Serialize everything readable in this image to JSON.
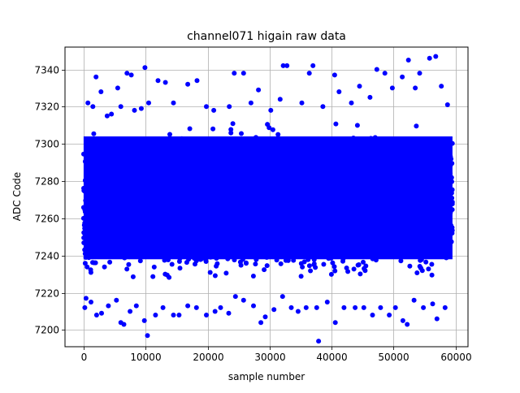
{
  "chart_data": {
    "type": "scatter",
    "title": "channel071 higain raw data",
    "xlabel": "sample number",
    "ylabel": "ADC Code",
    "xlim": [
      -3000,
      62000
    ],
    "ylim": [
      7191,
      7352
    ],
    "xticks": [
      0,
      10000,
      20000,
      30000,
      40000,
      50000,
      60000
    ],
    "yticks": [
      7200,
      7220,
      7240,
      7260,
      7280,
      7300,
      7320,
      7340
    ],
    "xtick_labels": [
      "0",
      "10000",
      "20000",
      "30000",
      "40000",
      "50000",
      "60000"
    ],
    "ytick_labels": [
      "7200",
      "7220",
      "7240",
      "7260",
      "7280",
      "7300",
      "7320",
      "7340"
    ],
    "grid": true,
    "marker_color": "#0000ff",
    "n_samples": 59500,
    "core_band": {
      "y_min": 7228,
      "y_max": 7312,
      "mean": 7268
    },
    "series": [
      {
        "values_points": [
          [
            700,
            7322
          ],
          [
            1500,
            7320
          ],
          [
            2000,
            7336
          ],
          [
            2800,
            7328
          ],
          [
            3800,
            7315
          ],
          [
            4500,
            7316
          ],
          [
            5500,
            7330
          ],
          [
            6000,
            7320
          ],
          [
            7000,
            7338
          ],
          [
            7700,
            7337
          ],
          [
            8200,
            7318
          ],
          [
            9300,
            7319
          ],
          [
            9900,
            7341
          ],
          [
            10500,
            7322
          ],
          [
            12000,
            7334
          ],
          [
            13200,
            7333
          ],
          [
            14500,
            7322
          ],
          [
            16800,
            7332
          ],
          [
            18300,
            7334
          ],
          [
            19800,
            7320
          ],
          [
            21000,
            7318
          ],
          [
            23500,
            7320
          ],
          [
            24300,
            7338
          ],
          [
            25800,
            7338
          ],
          [
            27000,
            7322
          ],
          [
            28200,
            7329
          ],
          [
            30200,
            7318
          ],
          [
            31700,
            7324
          ],
          [
            32200,
            7342
          ],
          [
            32800,
            7342
          ],
          [
            35200,
            7322
          ],
          [
            36400,
            7338
          ],
          [
            37000,
            7342
          ],
          [
            38600,
            7320
          ],
          [
            40500,
            7337
          ],
          [
            41200,
            7328
          ],
          [
            43200,
            7322
          ],
          [
            44500,
            7331
          ],
          [
            46200,
            7325
          ],
          [
            47300,
            7340
          ],
          [
            48600,
            7338
          ],
          [
            49800,
            7330
          ],
          [
            51400,
            7336
          ],
          [
            52400,
            7345
          ],
          [
            53500,
            7330
          ],
          [
            54200,
            7338
          ],
          [
            55800,
            7346
          ],
          [
            56800,
            7347
          ],
          [
            57700,
            7331
          ],
          [
            58700,
            7321
          ],
          [
            200,
            7212
          ],
          [
            400,
            7217
          ],
          [
            1200,
            7215
          ],
          [
            2100,
            7208
          ],
          [
            2900,
            7209
          ],
          [
            4000,
            7213
          ],
          [
            5300,
            7216
          ],
          [
            6000,
            7204
          ],
          [
            6500,
            7203
          ],
          [
            7500,
            7210
          ],
          [
            8500,
            7213
          ],
          [
            9800,
            7205
          ],
          [
            10300,
            7197
          ],
          [
            11600,
            7208
          ],
          [
            12800,
            7212
          ],
          [
            14500,
            7208
          ],
          [
            15400,
            7208
          ],
          [
            16800,
            7213
          ],
          [
            18200,
            7212
          ],
          [
            19800,
            7208
          ],
          [
            21200,
            7210
          ],
          [
            22100,
            7212
          ],
          [
            23400,
            7209
          ],
          [
            24500,
            7218
          ],
          [
            25800,
            7216
          ],
          [
            27400,
            7213
          ],
          [
            28600,
            7204
          ],
          [
            29300,
            7207
          ],
          [
            30700,
            7211
          ],
          [
            32100,
            7218
          ],
          [
            33500,
            7212
          ],
          [
            34600,
            7210
          ],
          [
            35900,
            7212
          ],
          [
            37600,
            7212
          ],
          [
            37900,
            7194
          ],
          [
            39300,
            7215
          ],
          [
            40600,
            7204
          ],
          [
            42000,
            7212
          ],
          [
            43800,
            7212
          ],
          [
            45200,
            7212
          ],
          [
            46600,
            7208
          ],
          [
            47900,
            7212
          ],
          [
            49300,
            7208
          ],
          [
            50300,
            7212
          ],
          [
            51500,
            7205
          ],
          [
            52200,
            7203
          ],
          [
            53300,
            7216
          ],
          [
            54800,
            7212
          ],
          [
            56300,
            7214
          ],
          [
            57000,
            7206
          ],
          [
            58300,
            7212
          ]
        ]
      }
    ]
  }
}
